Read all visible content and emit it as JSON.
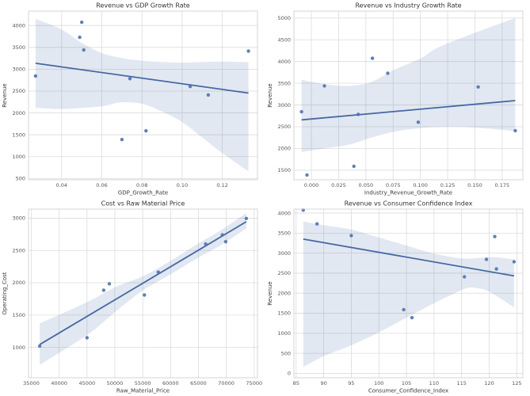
{
  "page": {
    "background": "#ffffff"
  },
  "style": {
    "accent": "#4c72b0",
    "point_color": "#4c72b0",
    "line_color": "#4668a3",
    "band_color": "#4c72b0",
    "band_opacity": 0.16,
    "grid_color": "#dcdcdc",
    "axes_edge_color": "#cccccc",
    "title_color": "#333333",
    "label_color": "#3a3a3a",
    "tick_color": "#555555"
  },
  "chart_data": [
    {
      "type": "scatter",
      "name": "revenue-vs-gdp-growth-rate",
      "title": "Revenue vs GDP Growth Rate",
      "xlabel": "GDP_Growth_Rate",
      "ylabel": "Revenue",
      "grid": true,
      "xlim": [
        0.0235,
        0.1375
      ],
      "ylim": [
        470,
        4330
      ],
      "xticks": {
        "values": [
          0.04,
          0.06,
          0.08,
          0.1,
          0.12
        ],
        "labels": [
          "0.04",
          "0.06",
          "0.08",
          "0.10",
          "0.12"
        ]
      },
      "yticks": {
        "values": [
          500,
          1000,
          1500,
          2000,
          2500,
          3000,
          3500,
          4000
        ],
        "labels": [
          "500",
          "1000",
          "1500",
          "2000",
          "2500",
          "3000",
          "3500",
          "4000"
        ]
      },
      "points": [
        [
          0.027,
          2845
        ],
        [
          0.049,
          3730
        ],
        [
          0.05,
          4075
        ],
        [
          0.051,
          3440
        ],
        [
          0.07,
          1390
        ],
        [
          0.074,
          2785
        ],
        [
          0.082,
          1590
        ],
        [
          0.104,
          2605
        ],
        [
          0.113,
          2410
        ],
        [
          0.133,
          3415
        ]
      ],
      "trend": {
        "x1": 0.027,
        "y1": 3136,
        "x2": 0.133,
        "y2": 2455
      },
      "ci_band": {
        "upper": [
          [
            0.027,
            4150
          ],
          [
            0.04,
            3910
          ],
          [
            0.05,
            3600
          ],
          [
            0.06,
            3370
          ],
          [
            0.07,
            3255
          ],
          [
            0.08,
            3195
          ],
          [
            0.09,
            3165
          ],
          [
            0.1,
            3150
          ],
          [
            0.11,
            3165
          ],
          [
            0.12,
            3175
          ],
          [
            0.133,
            3160
          ]
        ],
        "lower": [
          [
            0.027,
            2120
          ],
          [
            0.04,
            2090
          ],
          [
            0.06,
            2150
          ],
          [
            0.069,
            2240
          ],
          [
            0.08,
            2210
          ],
          [
            0.09,
            2030
          ],
          [
            0.1,
            1790
          ],
          [
            0.11,
            1440
          ],
          [
            0.12,
            1080
          ],
          [
            0.133,
            660
          ]
        ]
      }
    },
    {
      "type": "scatter",
      "name": "revenue-vs-industry-growth-rate",
      "title": "Revenue vs Industry Growth Rate",
      "xlabel": "Industry_Revenue_Growth_Rate",
      "ylabel": "Revenue",
      "grid": true,
      "xlim": [
        -0.016,
        0.194
      ],
      "ylim": [
        1280,
        5160
      ],
      "xticks": {
        "values": [
          0.0,
          0.025,
          0.05,
          0.075,
          0.1,
          0.125,
          0.15,
          0.175
        ],
        "labels": [
          "0.000",
          "0.025",
          "0.050",
          "0.075",
          "0.100",
          "0.125",
          "0.150",
          "0.175"
        ]
      },
      "yticks": {
        "values": [
          1500,
          2000,
          2500,
          3000,
          3500,
          4000,
          4500,
          5000
        ],
        "labels": [
          "1500",
          "2000",
          "2500",
          "3000",
          "3500",
          "4000",
          "4500",
          "5000"
        ]
      },
      "points": [
        [
          -0.009,
          2845
        ],
        [
          -0.004,
          1390
        ],
        [
          0.012,
          3440
        ],
        [
          0.039,
          1590
        ],
        [
          0.043,
          2785
        ],
        [
          0.056,
          4075
        ],
        [
          0.07,
          3730
        ],
        [
          0.098,
          2605
        ],
        [
          0.153,
          3415
        ],
        [
          0.187,
          2410
        ]
      ],
      "trend": {
        "x1": -0.009,
        "y1": 2658,
        "x2": 0.187,
        "y2": 3101
      },
      "ci_band": {
        "upper": [
          [
            -0.009,
            3580
          ],
          [
            0.012,
            3480
          ],
          [
            0.035,
            3440
          ],
          [
            0.055,
            3530
          ],
          [
            0.075,
            3800
          ],
          [
            0.1,
            4070
          ],
          [
            0.116,
            4320
          ],
          [
            0.15,
            4660
          ],
          [
            0.187,
            5000
          ]
        ],
        "lower": [
          [
            -0.009,
            1920
          ],
          [
            0.012,
            2000
          ],
          [
            0.035,
            2090
          ],
          [
            0.055,
            2250
          ],
          [
            0.075,
            2380
          ],
          [
            0.1,
            2470
          ],
          [
            0.125,
            2500
          ],
          [
            0.15,
            2480
          ],
          [
            0.187,
            2400
          ]
        ]
      }
    },
    {
      "type": "scatter",
      "name": "cost-vs-raw-material-price",
      "title": "Cost vs Raw Material Price",
      "xlabel": "Raw_Material_Price",
      "ylabel": "Operating_Cost",
      "grid": true,
      "xlim": [
        34500,
        75600
      ],
      "ylim": [
        530,
        3140
      ],
      "xticks": {
        "values": [
          35000,
          40000,
          45000,
          50000,
          55000,
          60000,
          65000,
          70000,
          75000
        ],
        "labels": [
          "35000",
          "40000",
          "45000",
          "50000",
          "55000",
          "60000",
          "65000",
          "70000",
          "75000"
        ]
      },
      "yticks": {
        "values": [
          1000,
          1500,
          2000,
          2500,
          3000
        ],
        "labels": [
          "1000",
          "1500",
          "2000",
          "2500",
          "3000"
        ]
      },
      "points": [
        [
          36500,
          1020
        ],
        [
          45000,
          1150
        ],
        [
          48000,
          1885
        ],
        [
          49000,
          1985
        ],
        [
          55300,
          1810
        ],
        [
          57800,
          2165
        ],
        [
          66300,
          2600
        ],
        [
          69300,
          2740
        ],
        [
          69900,
          2635
        ],
        [
          73600,
          2995
        ]
      ],
      "trend": {
        "x1": 36500,
        "y1": 1044,
        "x2": 73600,
        "y2": 2945
      },
      "ci_band": {
        "upper": [
          [
            36500,
            1370
          ],
          [
            45000,
            1700
          ],
          [
            50000,
            1930
          ],
          [
            55000,
            2100
          ],
          [
            60000,
            2340
          ],
          [
            65000,
            2610
          ],
          [
            69000,
            2810
          ],
          [
            73600,
            3080
          ]
        ],
        "lower": [
          [
            36500,
            730
          ],
          [
            45000,
            1190
          ],
          [
            50000,
            1545
          ],
          [
            55000,
            1880
          ],
          [
            60000,
            2130
          ],
          [
            65000,
            2390
          ],
          [
            69000,
            2580
          ],
          [
            73600,
            2840
          ]
        ]
      }
    },
    {
      "type": "scatter",
      "name": "revenue-vs-consumer-confidence-index",
      "title": "Revenue vs Consumer Confidence Index",
      "xlabel": "Consumer_Confidence_Index",
      "ylabel": "Revenue",
      "grid": true,
      "xlim": [
        84.6,
        126.1
      ],
      "ylim": [
        -110,
        4100
      ],
      "xticks": {
        "values": [
          85,
          90,
          95,
          100,
          105,
          110,
          115,
          120,
          125
        ],
        "labels": [
          "85",
          "90",
          "95",
          "100",
          "105",
          "110",
          "115",
          "120",
          "125"
        ]
      },
      "yticks": {
        "values": [
          0,
          500,
          1000,
          1500,
          2000,
          2500,
          3000,
          3500,
          4000
        ],
        "labels": [
          "0",
          "500",
          "1000",
          "1500",
          "2000",
          "2500",
          "3000",
          "3500",
          "4000"
        ]
      },
      "points": [
        [
          86.3,
          4075
        ],
        [
          88.8,
          3730
        ],
        [
          95.0,
          3440
        ],
        [
          104.5,
          1590
        ],
        [
          106.0,
          1390
        ],
        [
          115.5,
          2410
        ],
        [
          119.5,
          2845
        ],
        [
          121.0,
          3415
        ],
        [
          121.3,
          2605
        ],
        [
          124.5,
          2785
        ]
      ],
      "trend": {
        "x1": 86.3,
        "y1": 3352,
        "x2": 124.5,
        "y2": 2432
      },
      "ci_band": {
        "upper": [
          [
            86.3,
            3790
          ],
          [
            90,
            3700
          ],
          [
            95,
            3590
          ],
          [
            100,
            3390
          ],
          [
            105,
            3190
          ],
          [
            110,
            2990
          ],
          [
            115,
            2870
          ],
          [
            118,
            2880
          ],
          [
            121,
            2900
          ],
          [
            124.5,
            2840
          ]
        ],
        "lower": [
          [
            86.3,
            160
          ],
          [
            90,
            430
          ],
          [
            95,
            700
          ],
          [
            100,
            1020
          ],
          [
            105,
            1390
          ],
          [
            110,
            1750
          ],
          [
            113,
            1950
          ],
          [
            116,
            2130
          ],
          [
            118,
            2120
          ],
          [
            120,
            2040
          ],
          [
            124.5,
            1650
          ]
        ]
      }
    }
  ]
}
